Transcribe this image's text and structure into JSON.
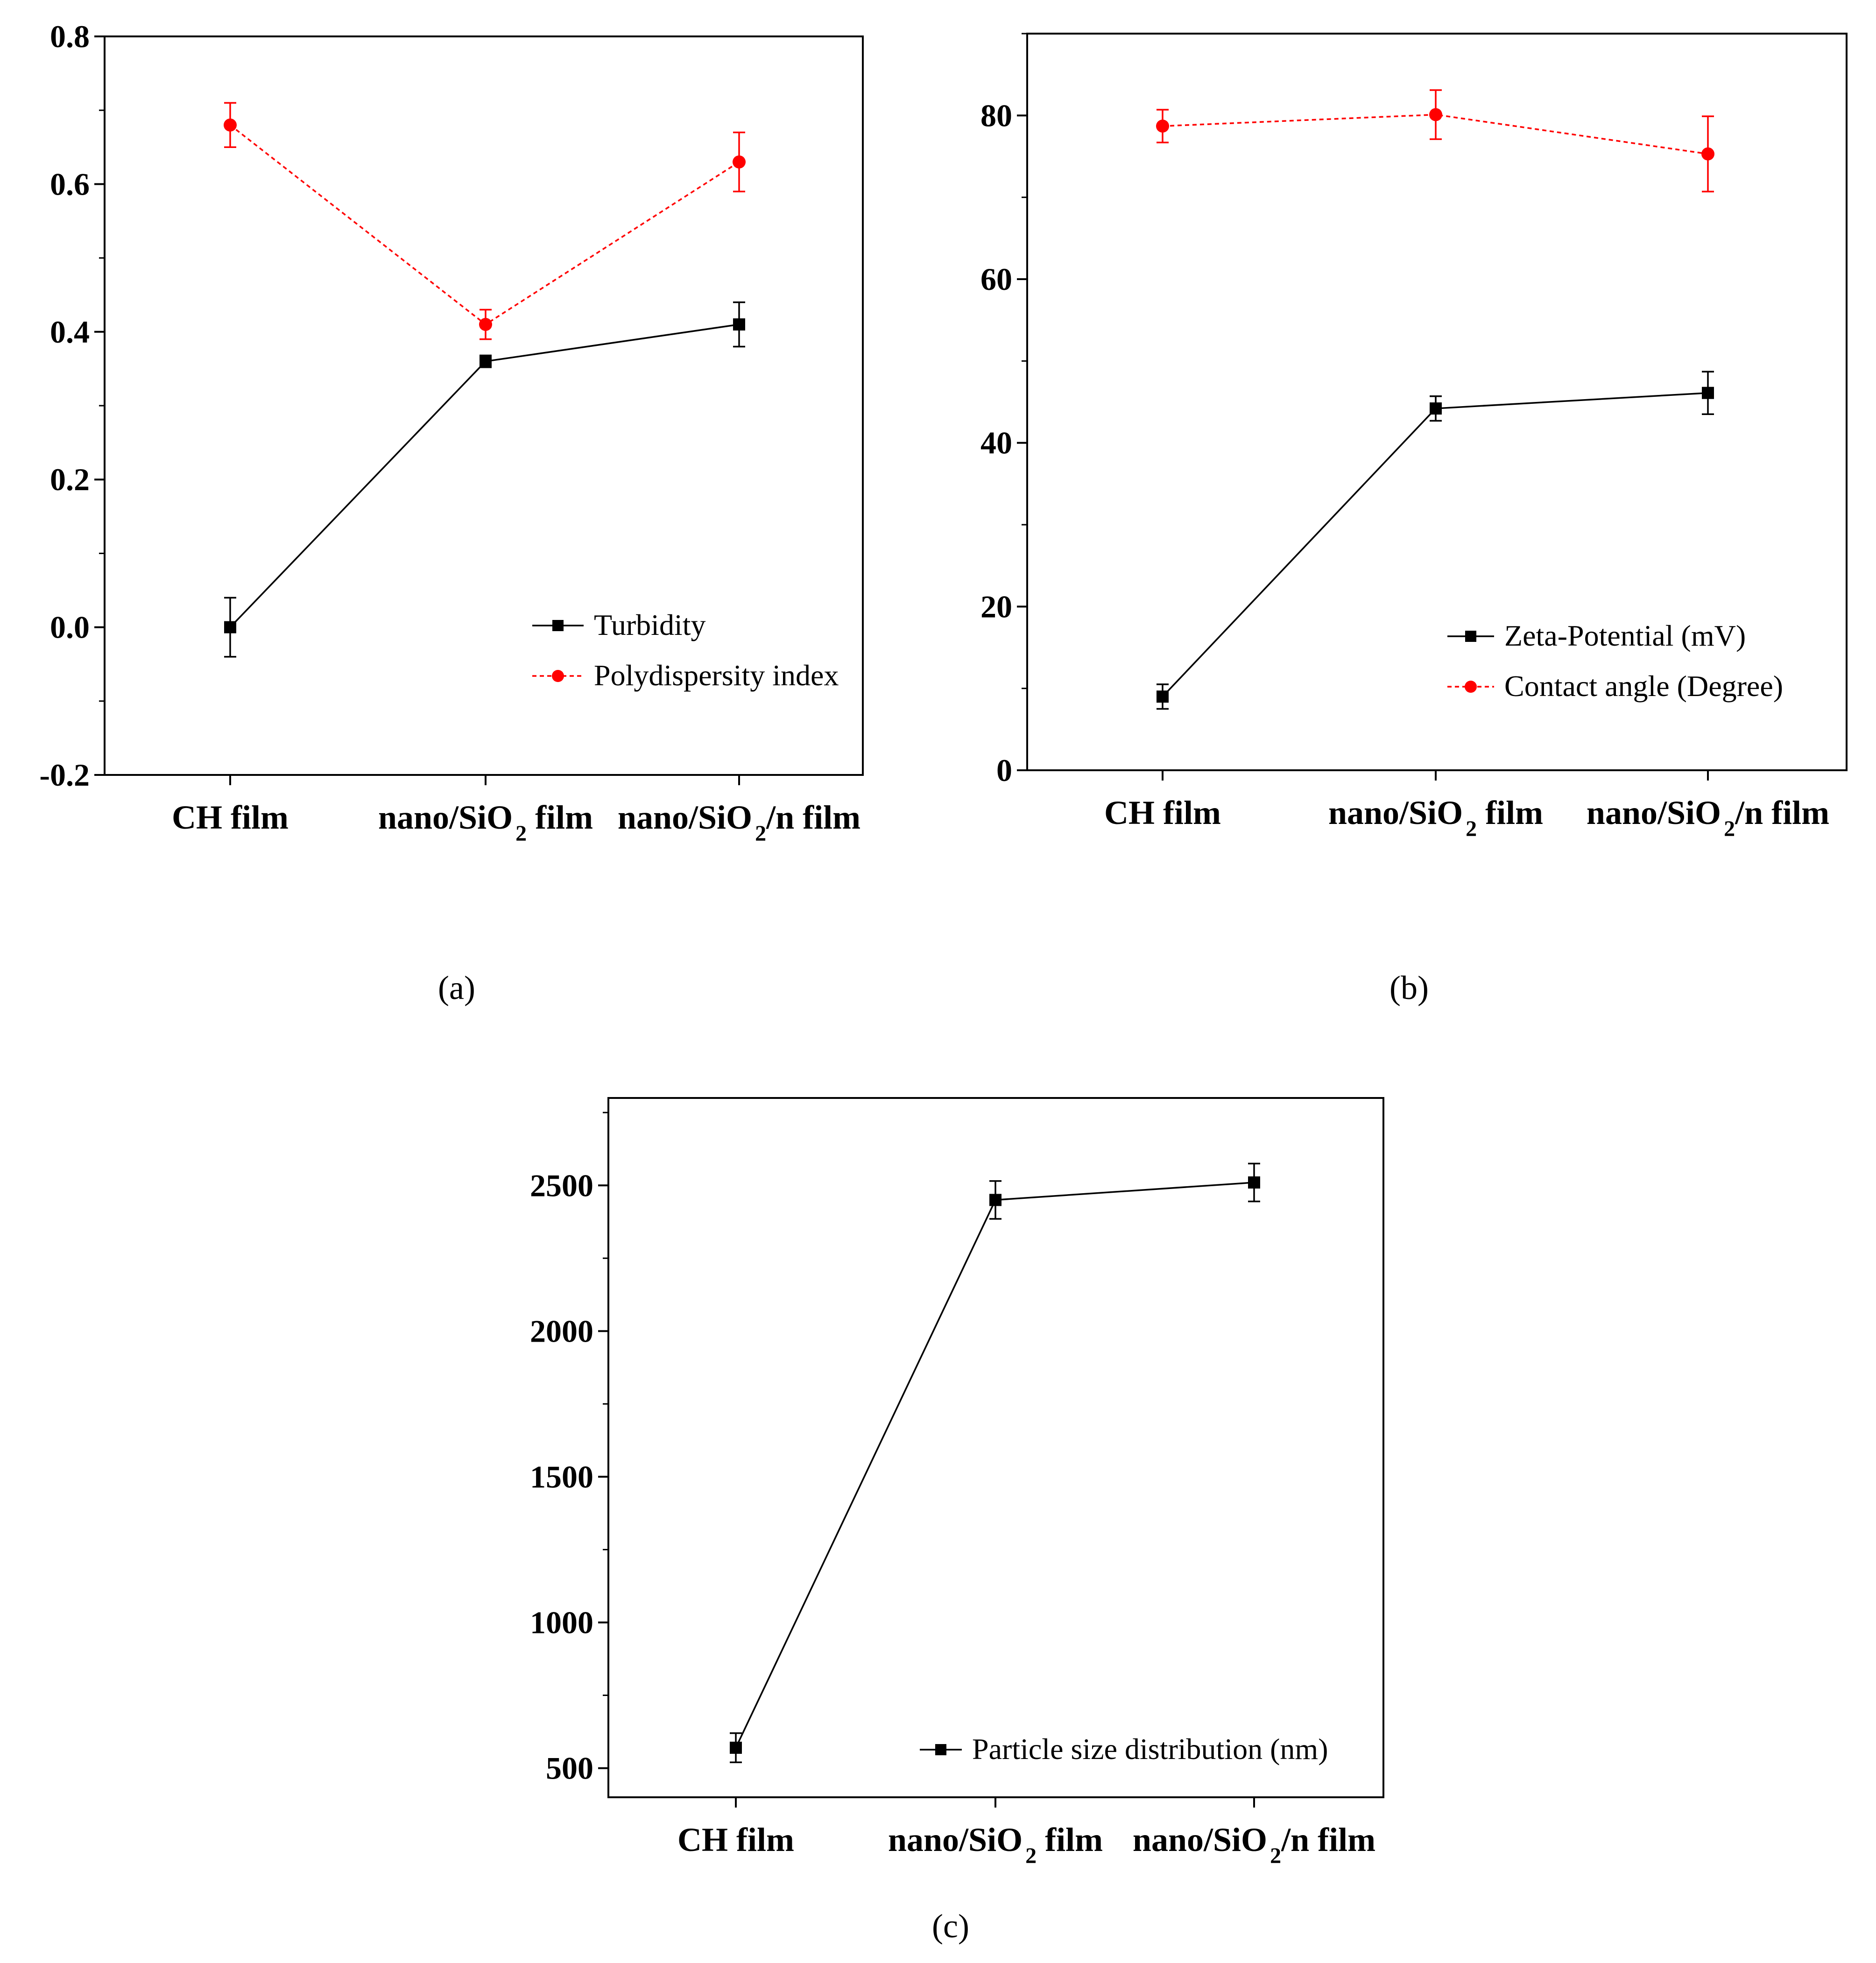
{
  "chart_data": [
    {
      "id": "a",
      "type": "line",
      "caption": "(a)",
      "categories": [
        "CH film",
        "nano/SiO₂ film",
        "nano/SiO₂/n film"
      ],
      "ylim": [
        -0.2,
        0.8
      ],
      "yticks": [
        -0.2,
        0.0,
        0.2,
        0.4,
        0.6,
        0.8
      ],
      "ytick_labels": [
        "-0.2",
        "0.0",
        "0.2",
        "0.4",
        "0.6",
        "0.8"
      ],
      "xlabel": "",
      "ylabel": "",
      "legend_position": "bottom-right",
      "series": [
        {
          "name": "Turbidity",
          "color": "#000000",
          "style": "solid",
          "marker": "square",
          "values": [
            0.0,
            0.36,
            0.41
          ],
          "errors": [
            0.04,
            0.008,
            0.03
          ]
        },
        {
          "name": "Polydispersity index",
          "color": "#ff0000",
          "style": "dotted",
          "marker": "circle",
          "values": [
            0.68,
            0.41,
            0.63
          ],
          "errors": [
            0.03,
            0.02,
            0.04
          ]
        }
      ]
    },
    {
      "id": "b",
      "type": "line",
      "caption": "(b)",
      "categories": [
        "CH film",
        "nano/SiO₂ film",
        "nano/SiO₂/n film"
      ],
      "ylim": [
        0,
        90
      ],
      "yticks": [
        0,
        20,
        40,
        60,
        80
      ],
      "ytick_labels": [
        "0",
        "20",
        "40",
        "60",
        "80"
      ],
      "xlabel": "",
      "ylabel": "",
      "legend_position": "bottom-right",
      "series": [
        {
          "name": "Zeta-Potential (mV)",
          "color": "#000000",
          "style": "solid",
          "marker": "square",
          "values": [
            9.0,
            44.2,
            46.1
          ],
          "errors": [
            1.5,
            1.5,
            2.6
          ]
        },
        {
          "name": "Contact angle (Degree)",
          "color": "#ff0000",
          "style": "dotted",
          "marker": "circle",
          "values": [
            78.7,
            80.1,
            75.3
          ],
          "errors": [
            2.0,
            3.0,
            4.6
          ]
        }
      ]
    },
    {
      "id": "c",
      "type": "line",
      "caption": "(c)",
      "categories": [
        "CH film",
        "nano/SiO₂ film",
        "nano/SiO₂/n film"
      ],
      "ylim": [
        400,
        2800
      ],
      "yticks": [
        500,
        1000,
        1500,
        2000,
        2500
      ],
      "ytick_labels": [
        "500",
        "1000",
        "1500",
        "2000",
        "2500"
      ],
      "xlabel": "",
      "ylabel": "",
      "legend_position": "bottom-right",
      "series": [
        {
          "name": "Particle size distribution (nm)",
          "color": "#000000",
          "style": "solid",
          "marker": "square",
          "values": [
            570,
            2450,
            2510
          ],
          "errors": [
            50,
            65,
            65
          ]
        }
      ]
    }
  ]
}
